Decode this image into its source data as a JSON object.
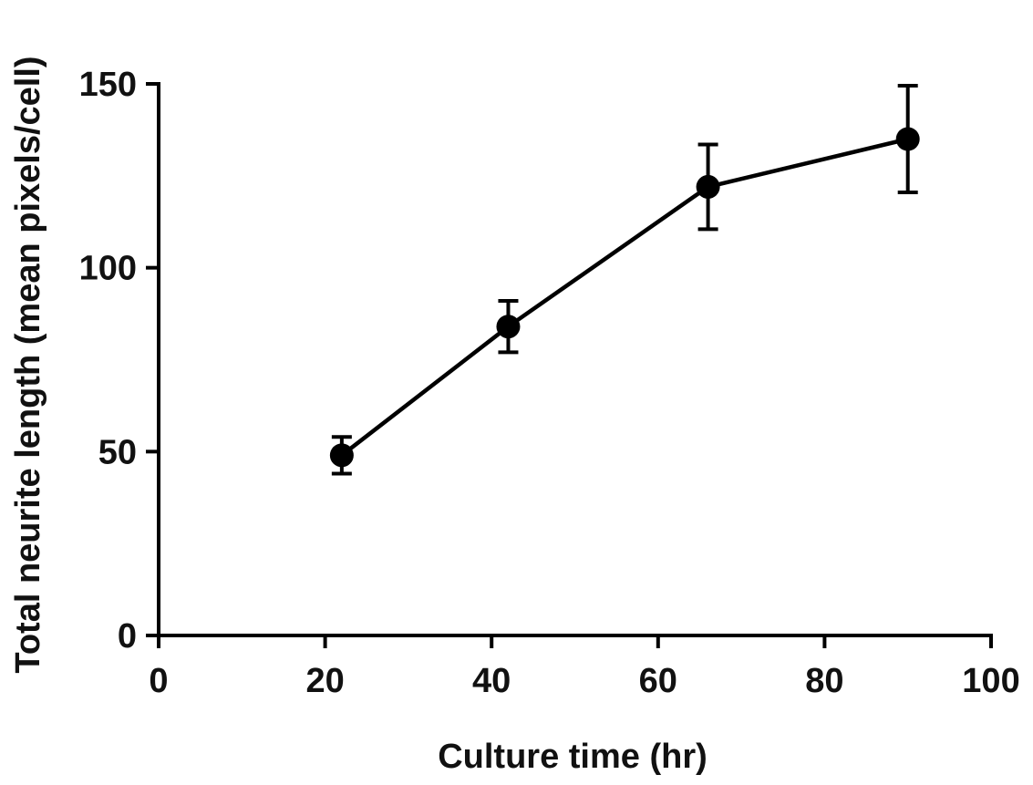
{
  "chart_data": {
    "type": "line",
    "title": "",
    "xlabel": "Culture time (hr)",
    "ylabel": "Total neurite length (mean pixels/cell)",
    "xlim": [
      0,
      100
    ],
    "ylim": [
      0,
      150
    ],
    "x_ticks": [
      0,
      20,
      40,
      60,
      80,
      100
    ],
    "y_ticks": [
      0,
      50,
      100,
      150
    ],
    "x_tick_labels": [
      "0",
      "20",
      "40",
      "60",
      "80",
      "100"
    ],
    "y_tick_labels": [
      "0",
      "50",
      "100",
      "150"
    ],
    "grid": false,
    "legend": "none",
    "series": [
      {
        "x": [
          22,
          42,
          66,
          90
        ],
        "y": [
          49,
          84,
          122,
          135
        ],
        "error": [
          5,
          7,
          11.5,
          14.5
        ],
        "color": "#000000",
        "marker": "circle"
      }
    ]
  }
}
